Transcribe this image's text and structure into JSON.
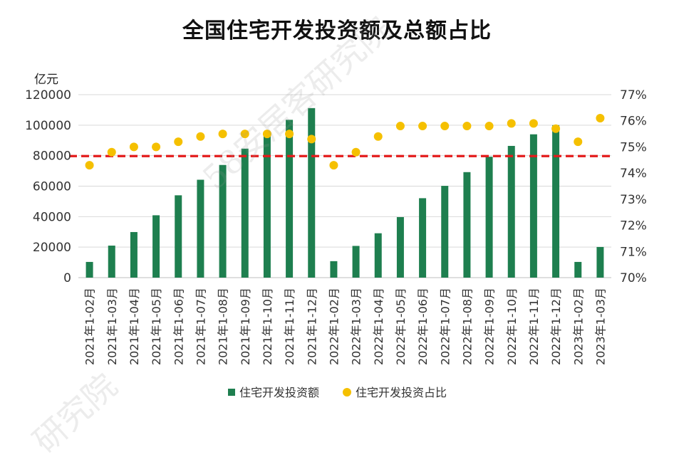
{
  "watermarks": [
    "58安居客研究院",
    "研究院"
  ],
  "chart_data": {
    "type": "bar",
    "title": "全国住宅开发投资额及总额占比",
    "y_unit_label": "亿元",
    "categories": [
      "2021年1-02月",
      "2021年1-03月",
      "2021年1-04月",
      "2021年1-05月",
      "2021年1-06月",
      "2021年1-07月",
      "2021年1-08月",
      "2021年1-09月",
      "2021年1-10月",
      "2021年1-11月",
      "2021年1-12月",
      "2022年1-02月",
      "2022年1-03月",
      "2022年1-04月",
      "2022年1-05月",
      "2022年1-06月",
      "2022年1-07月",
      "2022年1-08月",
      "2022年1-09月",
      "2022年1-10月",
      "2022年1-11月",
      "2022年1-12月",
      "2023年1-02月",
      "2023年1-03月"
    ],
    "series": [
      {
        "name": "住宅开发投资额",
        "type": "bar",
        "axis": "left",
        "color": "#1e7f4f",
        "values": [
          10300,
          21000,
          29900,
          40900,
          54000,
          64200,
          73900,
          84600,
          93600,
          103500,
          111200,
          10800,
          20800,
          29100,
          39700,
          52100,
          60200,
          69200,
          79300,
          86400,
          94000,
          100000,
          10300,
          20100
        ]
      },
      {
        "name": "住宅开发投资占比",
        "type": "scatter",
        "axis": "right",
        "color": "#f5c000",
        "values": [
          74.3,
          74.8,
          75.0,
          75.0,
          75.2,
          75.4,
          75.5,
          75.5,
          75.5,
          75.5,
          75.3,
          74.3,
          74.8,
          75.4,
          75.8,
          75.8,
          75.8,
          75.8,
          75.8,
          75.9,
          75.9,
          75.7,
          75.2,
          76.1
        ]
      }
    ],
    "y_left": {
      "min": 0,
      "max": 120000,
      "ticks": [
        "0",
        "20000",
        "40000",
        "60000",
        "80000",
        "100000",
        "120000"
      ],
      "tick_values": [
        0,
        20000,
        40000,
        60000,
        80000,
        100000,
        120000
      ]
    },
    "y_right": {
      "min": 70,
      "max": 77,
      "ticks": [
        "70%",
        "71%",
        "72%",
        "73%",
        "74%",
        "75%",
        "76%",
        "77%"
      ],
      "tick_values": [
        70,
        71,
        72,
        73,
        74,
        75,
        76,
        77
      ]
    },
    "reference_line": {
      "axis": "right",
      "value": 74.65,
      "color": "#e31b1b",
      "style": "dashed"
    },
    "grid": true,
    "legend_position": "bottom"
  }
}
